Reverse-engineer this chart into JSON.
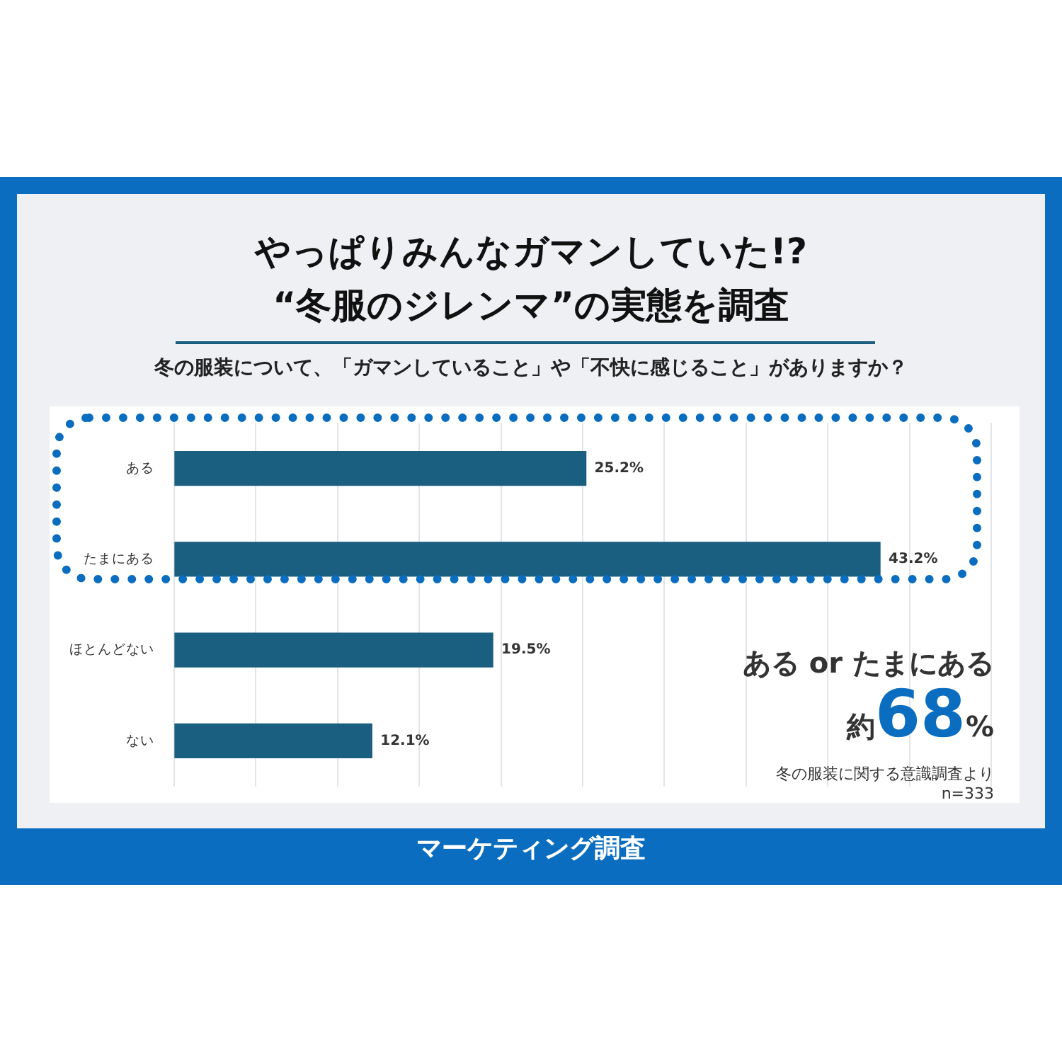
{
  "chart_data": {
    "type": "bar",
    "orientation": "horizontal",
    "title": "やっぱりみんなガマンしていた!?\n“冬服のジレンマ”の実態を調査",
    "subtitle": "冬の服装について、「ガマンしていること」や「不快に感じること」がありますか？",
    "categories": [
      "ある",
      "たまにある",
      "ほとんどない",
      "ない"
    ],
    "values": [
      25.2,
      43.2,
      19.5,
      12.1
    ],
    "color": "#1a5e80",
    "value_labels": [
      "25.2%",
      "43.2%",
      "19.5%",
      "12.1%"
    ],
    "xlim": [
      0,
      50
    ],
    "xticks": [
      0,
      5,
      10,
      15,
      20,
      25,
      30,
      35,
      40,
      45,
      50
    ],
    "tick_labels": "y",
    "grid": "x",
    "annotations": [
      "ある or たまにある",
      "約68%",
      "冬の服装に関する意識調査より",
      "n=333",
      "マーケティング調査"
    ]
  }
}
